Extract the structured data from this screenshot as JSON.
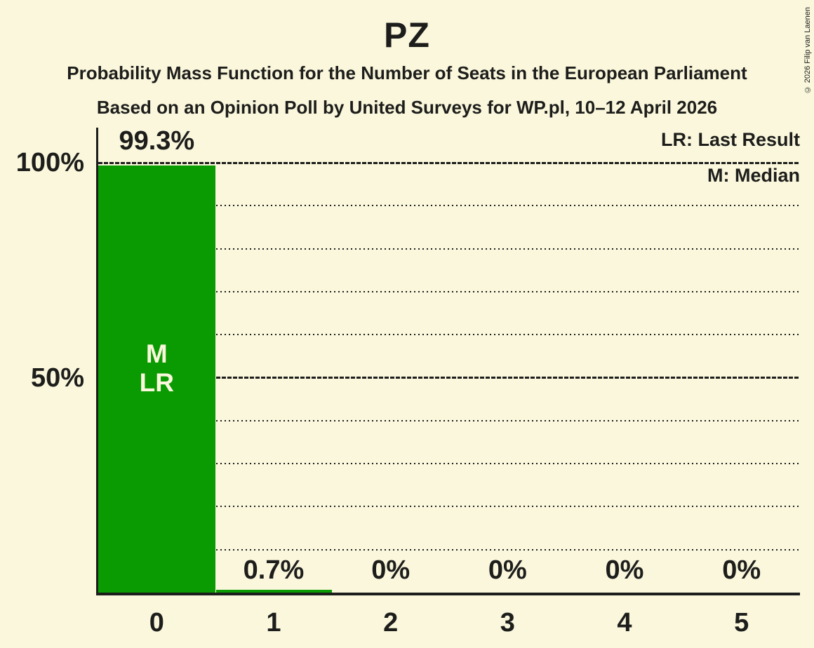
{
  "header": {
    "title": "PZ",
    "subtitle": "Probability Mass Function for the Number of Seats in the European Parliament",
    "poll_line": "Based on an Opinion Poll by United Surveys for WP.pl, 10–12 April 2026"
  },
  "legend": {
    "last_result": "LR: Last Result",
    "median": "M: Median"
  },
  "copyright": "© 2026 Filip van Laenen",
  "colors": {
    "background": "#FAF7DC",
    "bar": "#0A9A02",
    "text": "#1D1D1B",
    "bar_label": "#FAF7DC"
  },
  "chart_data": {
    "type": "bar",
    "title": "PZ",
    "categories": [
      "0",
      "1",
      "2",
      "3",
      "4",
      "5"
    ],
    "values": [
      99.3,
      0.7,
      0,
      0,
      0,
      0
    ],
    "value_labels": [
      "99.3%",
      "0.7%",
      "0%",
      "0%",
      "0%",
      "0%"
    ],
    "ylim": [
      0,
      100
    ],
    "yticks": [
      {
        "label": "100%",
        "value": 100
      },
      {
        "label": "50%",
        "value": 50
      }
    ],
    "solid_lines_at": [
      100,
      50
    ],
    "dotted_gridlines_at": [
      90,
      80,
      70,
      60,
      40,
      30,
      20,
      10
    ],
    "legend_position": "top-right",
    "annotations": [
      {
        "bar_index": 0,
        "lines": [
          "M",
          "LR"
        ]
      }
    ],
    "median_bar": 0,
    "last_result_bar": 0
  }
}
